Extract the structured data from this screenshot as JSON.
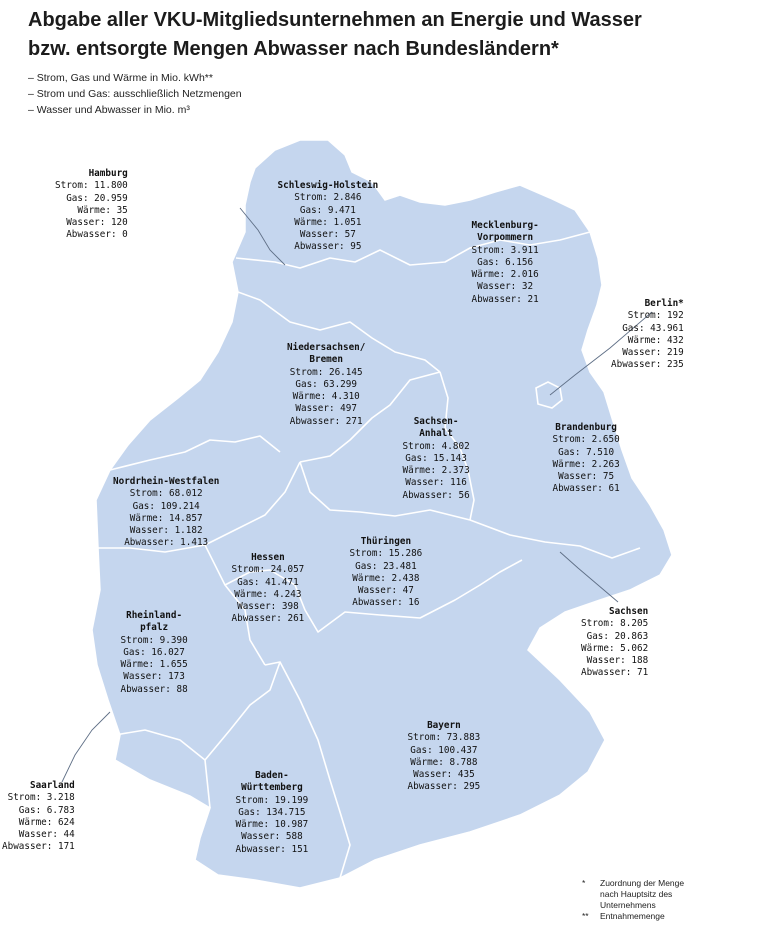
{
  "title_lines": [
    "Abgabe aller VKU-Mitgliedsunternehmen an Energie und Wasser",
    "bzw. entsorgte Mengen Abwasser nach Bundesländern*"
  ],
  "notes": [
    "– Strom, Gas und Wärme in Mio. kWh**",
    "– Strom und Gas: ausschließlich Netzmengen",
    "– Wasser und Abwasser in Mio. m³"
  ],
  "map_colors": {
    "fill": "#c5d6ee",
    "border": "#ffffff",
    "leader": "#5f6f86"
  },
  "regions": [
    {
      "key": "hamburg",
      "name": "Hamburg",
      "lines": [
        "Strom: 11.800",
        "Gas: 20.959",
        "Wärme: 35",
        "Wasser: 120",
        "Abwasser: 0"
      ]
    },
    {
      "key": "schleswig_holstein",
      "name": "Schleswig-Holstein",
      "lines": [
        "Strom: 2.846",
        "Gas: 9.471",
        "Wärme: 1.051",
        "Wasser: 57",
        "Abwasser: 95"
      ]
    },
    {
      "key": "mecklenburg_vorpommern",
      "name": "Mecklenburg-\nVorpommern",
      "lines": [
        "Strom: 3.911",
        "Gas: 6.156",
        "Wärme: 2.016",
        "Wasser: 32",
        "Abwasser: 21"
      ]
    },
    {
      "key": "berlin",
      "name": "Berlin*",
      "lines": [
        "Strom: 192",
        "Gas: 43.961",
        "Wärme: 432",
        "Wasser: 219",
        "Abwasser: 235"
      ]
    },
    {
      "key": "niedersachsen_bremen",
      "name": "Niedersachsen/\nBremen",
      "lines": [
        "Strom: 26.145",
        "Gas: 63.299",
        "Wärme: 4.310",
        "Wasser: 497",
        "Abwasser: 271"
      ]
    },
    {
      "key": "sachsen_anhalt",
      "name": "Sachsen-\nAnhalt",
      "lines": [
        "Strom: 4.802",
        "Gas: 15.143",
        "Wärme: 2.373",
        "Wasser: 116",
        "Abwasser: 56"
      ]
    },
    {
      "key": "brandenburg",
      "name": "Brandenburg",
      "lines": [
        "Strom: 2.650",
        "Gas: 7.510",
        "Wärme: 2.263",
        "Wasser: 75",
        "Abwasser: 61"
      ]
    },
    {
      "key": "nordrhein_westfalen",
      "name": "Nordrhein-Westfalen",
      "lines": [
        "Strom: 68.012",
        "Gas: 109.214",
        "Wärme: 14.857",
        "Wasser: 1.182",
        "Abwasser: 1.413"
      ]
    },
    {
      "key": "hessen",
      "name": "Hessen",
      "lines": [
        "Strom: 24.057",
        "Gas: 41.471",
        "Wärme: 4.243",
        "Wasser: 398",
        "Abwasser: 261"
      ]
    },
    {
      "key": "thueringen",
      "name": "Thüringen",
      "lines": [
        "Strom: 15.286",
        "Gas: 23.481",
        "Wärme: 2.438",
        "Wasser: 47",
        "Abwasser: 16"
      ]
    },
    {
      "key": "sachsen",
      "name": "Sachsen",
      "lines": [
        "Strom: 8.205",
        "Gas: 20.863",
        "Wärme: 5.062",
        "Wasser: 188",
        "Abwasser: 71"
      ]
    },
    {
      "key": "rheinland_pfalz",
      "name": "Rheinland-\npfalz",
      "lines": [
        "Strom: 9.390",
        "Gas: 16.027",
        "Wärme: 1.655",
        "Wasser: 173",
        "Abwasser: 88"
      ]
    },
    {
      "key": "saarland",
      "name": "Saarland",
      "lines": [
        "Strom: 3.218",
        "Gas: 6.783",
        "Wärme: 624",
        "Wasser: 44",
        "Abwasser: 171"
      ]
    },
    {
      "key": "baden_wuerttemberg",
      "name": "Baden-\nWürttemberg",
      "lines": [
        "Strom: 19.199",
        "Gas: 134.715",
        "Wärme: 10.987",
        "Wasser: 588",
        "Abwasser: 151"
      ]
    },
    {
      "key": "bayern",
      "name": "Bayern",
      "lines": [
        "Strom: 73.883",
        "Gas: 100.437",
        "Wärme: 8.788",
        "Wasser: 435",
        "Abwasser: 295"
      ]
    }
  ],
  "footnotes": [
    {
      "mark": "*",
      "text": "Zuordnung der Menge\nnach Hauptsitz des\nUnternehmens"
    },
    {
      "mark": "**",
      "text": "Entnahmemenge"
    }
  ]
}
